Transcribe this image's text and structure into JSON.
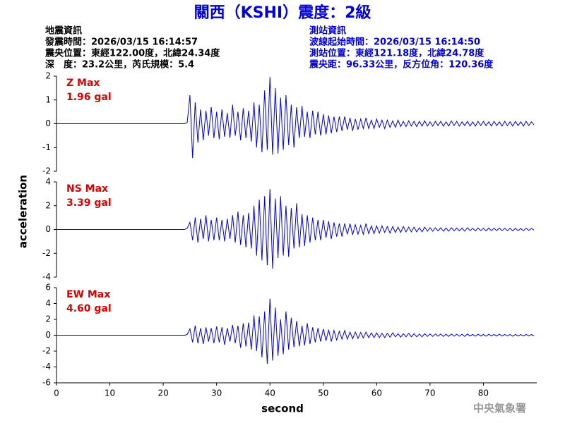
{
  "header": {
    "title": "關西（KSHI）震度：2級",
    "info_left": [
      "地震資訊",
      "發震時間：2026/03/15 16:14:57",
      "震央位置：東經122.00度，北緯24.34度",
      "深　度：23.2公里，芮氏規模：5.4"
    ],
    "info_right": [
      "測站資訊",
      "波線起始時間：2026/03/15 16:14:50",
      "測站位置：東經121.18度，北緯24.78度",
      "震央距：96.33公里，反方位角：120.36度"
    ],
    "footer": "中央氣象署"
  },
  "chart_data": [
    {
      "type": "line",
      "label": "Z Max",
      "annotation": "1.96 gal",
      "color": "#0000ff",
      "annotation_color": "#e00000",
      "xlim": [
        0,
        90
      ],
      "ylim": [
        -2,
        2
      ],
      "yticks": [
        -2,
        -1,
        0,
        1,
        2
      ],
      "x": [
        0,
        24,
        24.5,
        25,
        25.5,
        26,
        26.5,
        27,
        27.5,
        28,
        28.5,
        29,
        29.5,
        30,
        30.5,
        31,
        31.5,
        32,
        32.5,
        33,
        33.5,
        34,
        34.5,
        35,
        35.5,
        36,
        36.5,
        37,
        37.5,
        38,
        38.5,
        39,
        39.5,
        40,
        40.5,
        41,
        41.5,
        42,
        42.5,
        43,
        43.5,
        44,
        44.5,
        45,
        45.5,
        46,
        46.5,
        47,
        47.5,
        48,
        48.5,
        49,
        49.5,
        50,
        50.5,
        51,
        51.5,
        52,
        52.5,
        53,
        53.5,
        54,
        54.5,
        55,
        55.5,
        56,
        56.5,
        57,
        57.5,
        58,
        58.5,
        59,
        59.5,
        60,
        60.5,
        61,
        61.5,
        62,
        62.5,
        63,
        63.5,
        64,
        64.5,
        65,
        65.5,
        66,
        66.5,
        67,
        67.5,
        68,
        68.5,
        69,
        69.5,
        70,
        70.5,
        71,
        71.5,
        72,
        72.5,
        73,
        73.5,
        74,
        74.5,
        75,
        75.5,
        76,
        76.5,
        77,
        77.5,
        78,
        78.5,
        79,
        79.5,
        80,
        80.5,
        81,
        81.5,
        82,
        82.5,
        83,
        83.5,
        84,
        84.5,
        85,
        85.5,
        86,
        86.5,
        87,
        87.5,
        88,
        88.5,
        89,
        89.5
      ],
      "values": [
        0,
        0,
        0.05,
        1.2,
        -1.45,
        0.9,
        -0.8,
        0.6,
        -0.7,
        0.55,
        -0.5,
        0.7,
        -0.6,
        0.5,
        -0.65,
        0.6,
        -0.55,
        0.45,
        -0.6,
        0.8,
        -0.5,
        0.5,
        -0.7,
        0.65,
        -0.6,
        0.55,
        -0.75,
        0.9,
        -1.0,
        0.8,
        -1.2,
        1.4,
        -1.1,
        1.96,
        -1.3,
        1.5,
        -1.25,
        1.1,
        -1.1,
        1.2,
        -0.9,
        0.8,
        -1.0,
        0.7,
        -0.6,
        0.75,
        -0.55,
        0.5,
        -0.6,
        0.55,
        -0.45,
        0.5,
        -0.5,
        0.4,
        -0.45,
        0.35,
        -0.4,
        0.3,
        -0.35,
        0.3,
        -0.3,
        0.3,
        -0.25,
        0.25,
        -0.3,
        0.2,
        -0.25,
        0.2,
        -0.2,
        0.25,
        -0.2,
        0.15,
        -0.2,
        0.2,
        -0.15,
        0.15,
        -0.2,
        0.15,
        -0.15,
        0.12,
        -0.15,
        0.15,
        -0.12,
        0.1,
        -0.12,
        0.12,
        -0.1,
        0.1,
        -0.12,
        0.1,
        -0.1,
        0.12,
        -0.1,
        0.08,
        -0.1,
        0.1,
        -0.08,
        0.1,
        -0.1,
        0.08,
        -0.1,
        0.12,
        -0.08,
        0.1,
        -0.1,
        0.08,
        -0.08,
        0.1,
        -0.1,
        0.08,
        -0.1,
        0.1,
        -0.08,
        0.1,
        -0.08,
        0.08,
        -0.1,
        0.1,
        -0.08,
        0.08,
        -0.1,
        0.1,
        -0.08,
        0.08,
        -0.1,
        0.1,
        -0.08,
        0.08,
        -0.1,
        0.1,
        -0.08,
        0.08,
        -0.05
      ]
    },
    {
      "type": "line",
      "label": "NS Max",
      "annotation": "3.39 gal",
      "color": "#0000ff",
      "annotation_color": "#e00000",
      "ylabel": "acceleration",
      "xlim": [
        0,
        90
      ],
      "ylim": [
        -4,
        4
      ],
      "yticks": [
        -4,
        -2,
        0,
        2,
        4
      ],
      "x": [
        0,
        24,
        24.5,
        25,
        25.5,
        26,
        26.5,
        27,
        27.5,
        28,
        28.5,
        29,
        29.5,
        30,
        30.5,
        31,
        31.5,
        32,
        32.5,
        33,
        33.5,
        34,
        34.5,
        35,
        35.5,
        36,
        36.5,
        37,
        37.5,
        38,
        38.5,
        39,
        39.5,
        40,
        40.5,
        41,
        41.5,
        42,
        42.5,
        43,
        43.5,
        44,
        44.5,
        45,
        45.5,
        46,
        46.5,
        47,
        47.5,
        48,
        48.5,
        49,
        49.5,
        50,
        50.5,
        51,
        51.5,
        52,
        52.5,
        53,
        53.5,
        54,
        54.5,
        55,
        55.5,
        56,
        56.5,
        57,
        57.5,
        58,
        58.5,
        59,
        59.5,
        60,
        60.5,
        61,
        61.5,
        62,
        62.5,
        63,
        63.5,
        64,
        64.5,
        65,
        65.5,
        66,
        66.5,
        67,
        67.5,
        68,
        68.5,
        69,
        69.5,
        70,
        70.5,
        71,
        71.5,
        72,
        72.5,
        73,
        73.5,
        74,
        74.5,
        75,
        75.5,
        76,
        76.5,
        77,
        77.5,
        78,
        78.5,
        79,
        79.5,
        80,
        80.5,
        81,
        81.5,
        82,
        82.5,
        83,
        83.5,
        84,
        84.5,
        85,
        85.5,
        86,
        86.5,
        87,
        87.5,
        88,
        88.5,
        89,
        89.5
      ],
      "values": [
        0,
        0,
        0.1,
        0.6,
        -0.9,
        1.0,
        -1.1,
        0.9,
        -0.8,
        1.2,
        -1.0,
        0.8,
        -0.9,
        1.0,
        -0.9,
        0.8,
        -1.0,
        0.9,
        -0.8,
        1.2,
        -1.1,
        1.5,
        -1.3,
        1.2,
        -1.5,
        1.4,
        -1.6,
        2.0,
        -2.2,
        2.5,
        -2.6,
        2.8,
        -3.0,
        3.39,
        -3.3,
        2.6,
        -2.4,
        2.8,
        -2.2,
        2.0,
        -2.3,
        1.8,
        -1.6,
        2.2,
        -1.5,
        1.3,
        -1.4,
        1.2,
        -1.1,
        1.0,
        -0.9,
        0.8,
        -0.9,
        0.8,
        -0.7,
        0.7,
        -0.8,
        0.6,
        -0.6,
        0.5,
        -0.6,
        0.5,
        -0.4,
        0.5,
        -0.45,
        0.4,
        -0.4,
        0.35,
        -0.4,
        0.5,
        -0.35,
        0.3,
        -0.35,
        0.3,
        -0.3,
        0.3,
        -0.25,
        0.25,
        -0.3,
        0.25,
        -0.25,
        0.2,
        -0.25,
        0.25,
        -0.2,
        0.2,
        -0.2,
        0.2,
        -0.2,
        0.15,
        -0.2,
        0.2,
        -0.15,
        0.15,
        -0.15,
        0.15,
        -0.12,
        0.15,
        -0.15,
        0.12,
        -0.15,
        0.15,
        -0.12,
        0.12,
        -0.12,
        0.12,
        -0.15,
        0.15,
        -0.1,
        0.1,
        -0.12,
        0.12,
        -0.1,
        0.1,
        -0.12,
        0.12,
        -0.1,
        0.1,
        -0.1,
        0.12,
        -0.1,
        0.1,
        -0.1,
        0.1,
        -0.12,
        0.1,
        -0.1,
        0.08,
        -0.1,
        0.1,
        -0.08,
        0.08,
        -0.05
      ]
    },
    {
      "type": "line",
      "label": "EW Max",
      "annotation": "4.60 gal",
      "color": "#0000ff",
      "annotation_color": "#e00000",
      "xlabel": "second",
      "xlim": [
        0,
        90
      ],
      "xticks": [
        0,
        10,
        20,
        30,
        40,
        50,
        60,
        70,
        80
      ],
      "ylim": [
        -6,
        6
      ],
      "yticks": [
        -6,
        -4,
        -2,
        0,
        2,
        4,
        6
      ],
      "x": [
        0,
        24,
        24.5,
        25,
        25.5,
        26,
        26.5,
        27,
        27.5,
        28,
        28.5,
        29,
        29.5,
        30,
        30.5,
        31,
        31.5,
        32,
        32.5,
        33,
        33.5,
        34,
        34.5,
        35,
        35.5,
        36,
        36.5,
        37,
        37.5,
        38,
        38.5,
        39,
        39.5,
        40,
        40.5,
        41,
        41.5,
        42,
        42.5,
        43,
        43.5,
        44,
        44.5,
        45,
        45.5,
        46,
        46.5,
        47,
        47.5,
        48,
        48.5,
        49,
        49.5,
        50,
        50.5,
        51,
        51.5,
        52,
        52.5,
        53,
        53.5,
        54,
        54.5,
        55,
        55.5,
        56,
        56.5,
        57,
        57.5,
        58,
        58.5,
        59,
        59.5,
        60,
        60.5,
        61,
        61.5,
        62,
        62.5,
        63,
        63.5,
        64,
        64.5,
        65,
        65.5,
        66,
        66.5,
        67,
        67.5,
        68,
        68.5,
        69,
        69.5,
        70,
        70.5,
        71,
        71.5,
        72,
        72.5,
        73,
        73.5,
        74,
        74.5,
        75,
        75.5,
        76,
        76.5,
        77,
        77.5,
        78,
        78.5,
        79,
        79.5,
        80,
        80.5,
        81,
        81.5,
        82,
        82.5,
        83,
        83.5,
        84,
        84.5,
        85,
        85.5,
        86,
        86.5,
        87,
        87.5,
        88,
        88.5,
        89,
        89.5
      ],
      "values": [
        0,
        0,
        0.1,
        0.8,
        -0.9,
        1.2,
        -1.0,
        0.9,
        -1.1,
        1.0,
        -0.8,
        0.9,
        -1.0,
        1.1,
        -0.9,
        1.0,
        -1.2,
        0.9,
        -0.8,
        1.3,
        -1.0,
        1.2,
        -1.6,
        1.5,
        -1.4,
        1.6,
        -1.8,
        2.5,
        -2.0,
        2.4,
        -2.8,
        3.0,
        -3.6,
        4.6,
        -3.2,
        3.5,
        -2.6,
        2.0,
        -2.4,
        3.0,
        -1.8,
        2.2,
        -1.5,
        1.8,
        -1.4,
        1.2,
        -1.3,
        1.5,
        -1.1,
        1.0,
        -0.9,
        0.9,
        -0.8,
        0.8,
        -0.7,
        0.7,
        -0.8,
        0.6,
        -0.6,
        0.5,
        -0.5,
        0.6,
        -0.5,
        0.4,
        -0.45,
        0.4,
        -0.4,
        0.35,
        -0.35,
        0.4,
        -0.3,
        0.3,
        -0.3,
        0.3,
        -0.3,
        0.25,
        -0.3,
        0.25,
        -0.25,
        0.3,
        -0.2,
        0.2,
        -0.25,
        0.2,
        -0.2,
        0.25,
        -0.2,
        0.2,
        -0.2,
        0.15,
        -0.2,
        0.2,
        -0.15,
        0.15,
        -0.15,
        0.15,
        -0.12,
        0.15,
        -0.15,
        0.12,
        -0.15,
        0.15,
        -0.12,
        0.12,
        -0.12,
        0.12,
        -0.15,
        0.15,
        -0.1,
        0.1,
        -0.12,
        0.12,
        -0.1,
        0.1,
        -0.12,
        0.12,
        -0.1,
        0.1,
        -0.1,
        0.12,
        -0.1,
        0.1,
        -0.1,
        0.1,
        -0.12,
        0.1,
        -0.1,
        0.08,
        -0.1,
        0.1,
        -0.08,
        0.08,
        -0.05
      ]
    }
  ]
}
